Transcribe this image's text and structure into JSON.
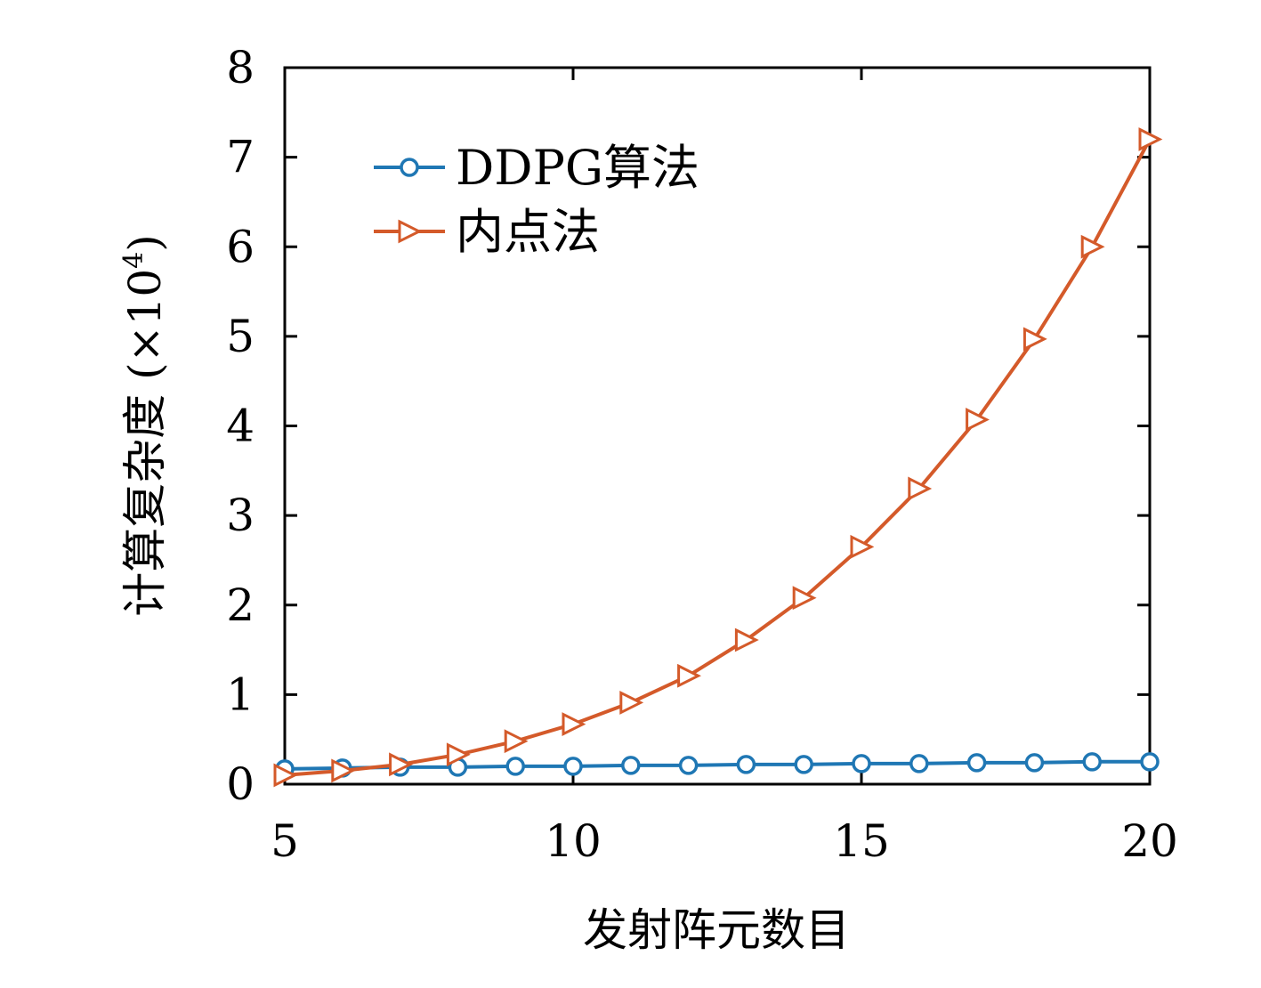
{
  "chart_data": {
    "type": "line",
    "xlabel": "发射阵元数目",
    "ylabel": "计算复杂度 (×10",
    "ylabel_exponent": "4",
    "ylabel_close": ")",
    "xlim": [
      5,
      20
    ],
    "ylim": [
      0,
      8
    ],
    "xticks": [
      "5",
      "10",
      "15",
      "20"
    ],
    "yticks": [
      "0",
      "1",
      "2",
      "3",
      "4",
      "5",
      "6",
      "7",
      "8"
    ],
    "grid": false,
    "legend_position": "top-left",
    "x": [
      5,
      6,
      7,
      8,
      9,
      10,
      11,
      12,
      13,
      14,
      15,
      16,
      17,
      18,
      19,
      20
    ],
    "series": [
      {
        "name": "DDPG算法",
        "color": "#1f77b4",
        "marker": "circle",
        "values": [
          0.17,
          0.18,
          0.19,
          0.19,
          0.2,
          0.2,
          0.21,
          0.21,
          0.22,
          0.22,
          0.23,
          0.23,
          0.24,
          0.24,
          0.25,
          0.25
        ]
      },
      {
        "name": "内点法",
        "color": "#d45a2a",
        "marker": "triangle-right",
        "values": [
          0.1,
          0.15,
          0.22,
          0.33,
          0.48,
          0.67,
          0.91,
          1.21,
          1.61,
          2.08,
          2.65,
          3.3,
          4.07,
          4.97,
          6.0,
          7.2
        ]
      }
    ]
  }
}
